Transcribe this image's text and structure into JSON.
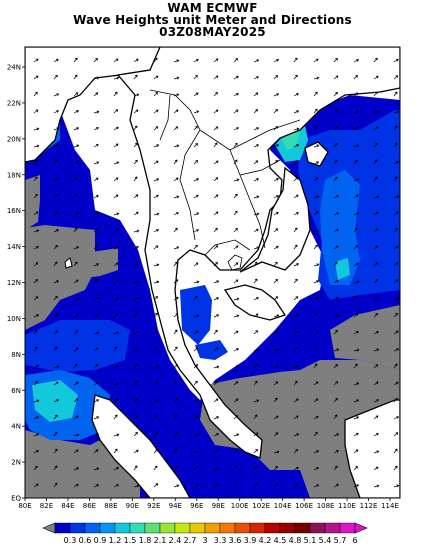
{
  "header": {
    "line1": "WAM ECMWF",
    "line2": "Wave Heights unit Meter and Directions",
    "line3": "03Z08MAY2025"
  },
  "axes": {
    "lat_labels": [
      "24N",
      "22N",
      "20N",
      "18N",
      "16N",
      "14N",
      "12N",
      "10N",
      "8N",
      "6N",
      "4N",
      "2N",
      "EQ"
    ],
    "lon_labels": [
      "80E",
      "82E",
      "84E",
      "86E",
      "88E",
      "90E",
      "92E",
      "94E",
      "96E",
      "98E",
      "100E",
      "102E",
      "104E",
      "106E",
      "108E",
      "110E",
      "112E",
      "114E"
    ]
  },
  "colorbar": {
    "labels": [
      "0.3",
      "0.6",
      "0.9",
      "1.2",
      "1.5",
      "1.8",
      "2.1",
      "2.4",
      "2.7",
      "3",
      "3.3",
      "3.6",
      "3.9",
      "4.2",
      "4.5",
      "4.8",
      "5.1",
      "5.4",
      "5.7",
      "6"
    ],
    "colors": [
      "#0000c8",
      "#0032e6",
      "#0064f0",
      "#0096f0",
      "#14c8dc",
      "#32dcb4",
      "#64dc78",
      "#96e632",
      "#c8e614",
      "#e6c800",
      "#f0a000",
      "#f07800",
      "#e65000",
      "#d22800",
      "#b40000",
      "#960000",
      "#780000",
      "#8c1450",
      "#b4148c",
      "#dc14c8"
    ]
  },
  "map_colors": {
    "land": "#ffffff",
    "no_data": "#7f7f7f",
    "band_lowest": "#0000c8",
    "band_low": "#0032e6",
    "band_mid": "#0064f0",
    "band_high": "#14c8dc",
    "band_peak": "#32dcb4"
  }
}
